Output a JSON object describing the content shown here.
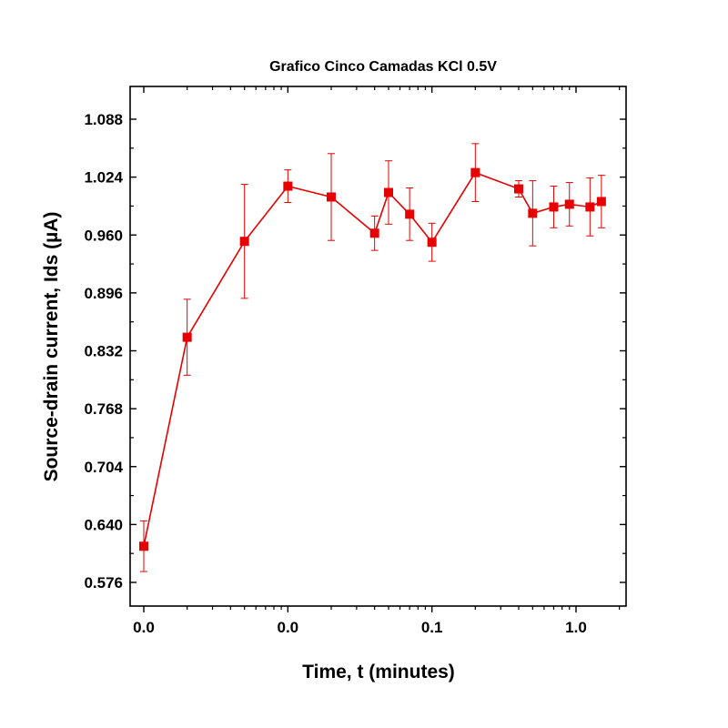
{
  "chart_data": {
    "type": "line",
    "title": "Grafico Cinco Camadas KCl 0.5V",
    "xlabel": "Time, t (minutes)",
    "ylabel": "Source-drain current, Ids (µA)",
    "x_scale": "log",
    "xlim": [
      0.001,
      1.5
    ],
    "ylim": [
      0.544,
      1.12
    ],
    "x_tick_values": [
      0.001,
      0.01,
      0.1,
      1.0
    ],
    "x_tick_labels": [
      "0.0",
      "0.0",
      "0.1",
      "1.0"
    ],
    "y_ticks": [
      0.576,
      0.64,
      0.704,
      0.768,
      0.832,
      0.896,
      0.96,
      1.024,
      1.088
    ],
    "y_tick_labels": [
      "0.576",
      "0.640",
      "0.704",
      "0.768",
      "0.832",
      "0.896",
      "0.960",
      "1.024",
      "1.088"
    ],
    "grid": false,
    "series": [
      {
        "color": "#e60000",
        "marker": "square",
        "x": [
          0.001,
          0.002,
          0.005,
          0.01,
          0.02,
          0.04,
          0.05,
          0.07,
          0.1,
          0.2,
          0.4,
          0.5,
          0.7,
          0.9,
          1.25,
          1.5
        ],
        "y": [
          0.616,
          0.847,
          0.953,
          1.014,
          1.002,
          0.962,
          1.007,
          0.983,
          0.952,
          1.029,
          1.011,
          0.984,
          0.991,
          0.994,
          0.991,
          0.997
        ],
        "err": [
          0.028,
          0.042,
          0.063,
          0.018,
          0.048,
          0.019,
          0.035,
          0.029,
          0.021,
          0.032,
          0.009,
          0.036,
          0.023,
          0.024,
          0.032,
          0.029
        ]
      }
    ]
  }
}
